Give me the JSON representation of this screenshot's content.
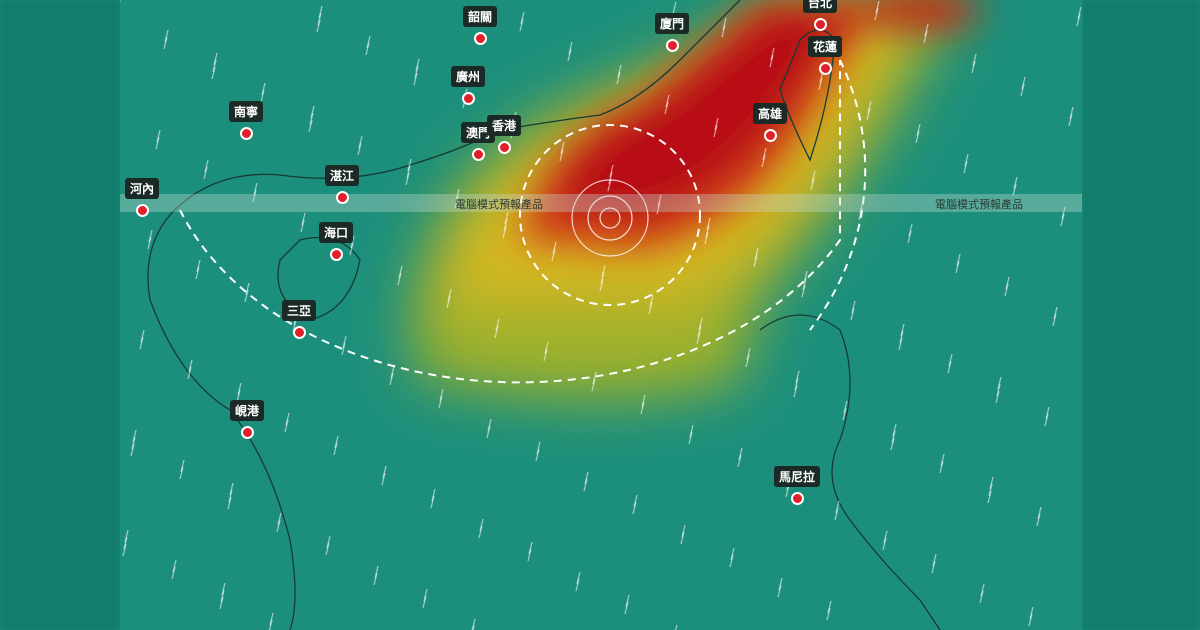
{
  "watermark": "電腦模式預報產品",
  "colors": {
    "sea": "#1c8f7c",
    "storm_core": "#c0141a",
    "storm_outer": "#d6c21e",
    "marker": "#e0202a"
  },
  "cities": [
    {
      "name": "韶關"
    },
    {
      "name": "廣州"
    },
    {
      "name": "廈門"
    },
    {
      "name": "台北"
    },
    {
      "name": "花蓮"
    },
    {
      "name": "高雄"
    },
    {
      "name": "南寧"
    },
    {
      "name": "澳門"
    },
    {
      "name": "香港"
    },
    {
      "name": "河內"
    },
    {
      "name": "湛江"
    },
    {
      "name": "海口"
    },
    {
      "name": "三亞"
    },
    {
      "name": "峴港"
    },
    {
      "name": "馬尼拉"
    }
  ]
}
